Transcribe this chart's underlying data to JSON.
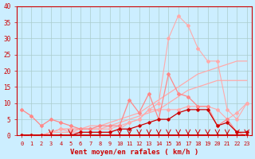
{
  "x": [
    0,
    1,
    2,
    3,
    4,
    5,
    6,
    7,
    8,
    9,
    10,
    11,
    12,
    13,
    14,
    15,
    16,
    17,
    18,
    19,
    20,
    21,
    22,
    23
  ],
  "line_peak": [
    0,
    0,
    0,
    1,
    2,
    2,
    2,
    2,
    2,
    2,
    3,
    4,
    5,
    8,
    10,
    30,
    37,
    34,
    27,
    23,
    23,
    8,
    5,
    10
  ],
  "line_trend1": [
    0,
    0,
    0,
    1,
    2,
    2,
    2,
    3,
    3,
    4,
    5,
    6,
    7,
    9,
    11,
    13,
    15,
    17,
    19,
    20,
    21,
    22,
    23,
    23
  ],
  "line_trend2": [
    0,
    0,
    0,
    1,
    1,
    1,
    2,
    2,
    2,
    3,
    4,
    5,
    6,
    7,
    8,
    10,
    12,
    14,
    15,
    16,
    17,
    17,
    17,
    17
  ],
  "line_med": [
    8,
    6,
    3,
    5,
    4,
    3,
    2,
    2,
    3,
    3,
    3,
    11,
    7,
    13,
    5,
    19,
    13,
    12,
    9,
    9,
    3,
    5,
    1,
    0
  ],
  "line_low1": [
    0,
    0,
    0,
    1,
    2,
    1,
    1,
    1,
    1,
    1,
    2,
    4,
    5,
    8,
    8,
    8,
    8,
    9,
    9,
    9,
    8,
    5,
    7,
    10
  ],
  "line_low2": [
    0,
    0,
    0,
    0,
    0,
    0,
    1,
    1,
    1,
    1,
    2,
    2,
    3,
    4,
    5,
    5,
    7,
    8,
    8,
    8,
    3,
    4,
    1,
    1
  ],
  "line_zero": [
    0,
    0,
    0,
    0,
    0,
    0,
    0,
    0,
    0,
    0,
    0,
    0,
    0,
    0,
    0,
    0,
    0,
    0,
    0,
    0,
    0,
    0,
    0,
    0
  ],
  "bg_color": "#cceeff",
  "grid_color": "#aacccc",
  "color_light_pink": "#ffaaaa",
  "color_med_pink": "#ff8888",
  "color_dark_red": "#cc0000",
  "color_bright_red": "#ff2222",
  "xlabel": "Vent moyen/en rafales ( km/h )",
  "tick_color": "#cc0000",
  "ylim": [
    0,
    40
  ],
  "xlim": [
    -0.5,
    23.5
  ],
  "yticks": [
    0,
    5,
    10,
    15,
    20,
    25,
    30,
    35,
    40
  ],
  "xticks": [
    0,
    1,
    2,
    3,
    4,
    5,
    6,
    7,
    8,
    9,
    10,
    11,
    12,
    13,
    14,
    15,
    16,
    17,
    18,
    19,
    20,
    21,
    22,
    23
  ]
}
